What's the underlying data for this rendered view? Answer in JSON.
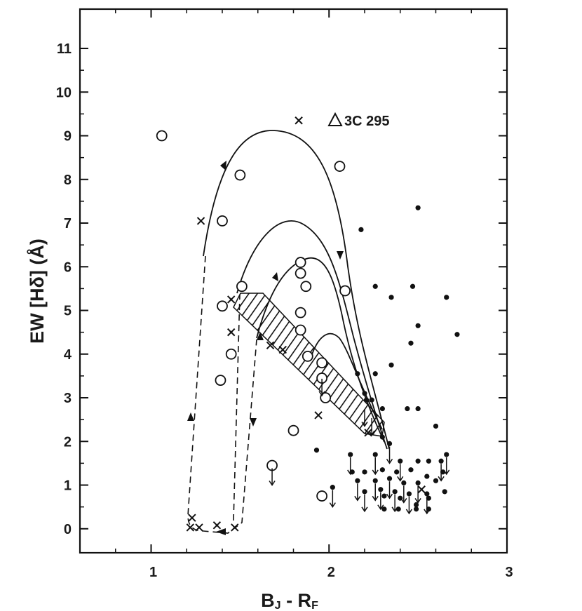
{
  "chart_data": {
    "type": "scatter",
    "title": "",
    "xlabel": "B_J - R_F",
    "ylabel": "EW [Hδ] (Å)",
    "xlim": [
      0.6,
      3.0
    ],
    "ylim": [
      -0.55,
      11.9
    ],
    "xticks": [
      1,
      2,
      3
    ],
    "yticks": [
      0,
      1,
      2,
      3,
      4,
      5,
      6,
      7,
      8,
      9,
      10,
      11
    ],
    "grid": false,
    "annotation": {
      "label": "3C 295",
      "symbol": "triangle"
    },
    "series": [
      {
        "marker": "open-circle",
        "points": [
          [
            1.06,
            9.0
          ],
          [
            1.5,
            8.1
          ],
          [
            2.06,
            8.3
          ],
          [
            1.4,
            7.05
          ],
          [
            1.84,
            6.1
          ],
          [
            1.84,
            5.85
          ],
          [
            1.87,
            5.55
          ],
          [
            1.51,
            5.55
          ],
          [
            2.09,
            5.45
          ],
          [
            1.4,
            5.1
          ],
          [
            1.84,
            4.95
          ],
          [
            1.84,
            4.55
          ],
          [
            1.45,
            4.0
          ],
          [
            1.88,
            3.95
          ],
          [
            1.96,
            3.8
          ],
          [
            1.96,
            3.45
          ],
          [
            1.39,
            3.4
          ],
          [
            1.98,
            3.0
          ],
          [
            1.8,
            2.25
          ],
          [
            1.68,
            1.45
          ],
          [
            1.96,
            0.75
          ]
        ]
      },
      {
        "marker": "cross",
        "points": [
          [
            1.83,
            9.35
          ],
          [
            1.28,
            7.05
          ],
          [
            1.45,
            5.25
          ],
          [
            1.45,
            4.5
          ],
          [
            1.67,
            4.2
          ],
          [
            1.74,
            4.1
          ],
          [
            1.94,
            2.6
          ],
          [
            2.22,
            2.2
          ],
          [
            2.52,
            0.9
          ],
          [
            1.23,
            0.25
          ],
          [
            1.22,
            0.03
          ],
          [
            1.27,
            0.03
          ],
          [
            1.37,
            0.08
          ],
          [
            1.47,
            0.03
          ]
        ]
      },
      {
        "marker": "filled-circle",
        "points": [
          [
            2.5,
            7.35
          ],
          [
            2.18,
            6.85
          ],
          [
            2.26,
            5.55
          ],
          [
            2.47,
            5.55
          ],
          [
            2.35,
            5.3
          ],
          [
            2.66,
            5.3
          ],
          [
            2.5,
            4.65
          ],
          [
            2.72,
            4.45
          ],
          [
            2.46,
            4.25
          ],
          [
            2.35,
            3.75
          ],
          [
            2.16,
            3.55
          ],
          [
            2.26,
            3.55
          ],
          [
            2.2,
            3.1
          ],
          [
            2.21,
            2.95
          ],
          [
            2.24,
            2.95
          ],
          [
            2.3,
            2.75
          ],
          [
            2.44,
            2.75
          ],
          [
            2.5,
            2.75
          ],
          [
            2.6,
            2.35
          ],
          [
            2.3,
            2.1
          ],
          [
            2.34,
            1.95
          ],
          [
            1.93,
            1.8
          ],
          [
            2.12,
            1.7
          ],
          [
            2.26,
            1.7
          ],
          [
            2.4,
            1.55
          ],
          [
            2.5,
            1.55
          ],
          [
            2.56,
            1.55
          ],
          [
            2.63,
            1.55
          ],
          [
            2.66,
            1.7
          ],
          [
            2.13,
            1.3
          ],
          [
            2.2,
            1.3
          ],
          [
            2.3,
            1.35
          ],
          [
            2.38,
            1.3
          ],
          [
            2.46,
            1.35
          ],
          [
            2.55,
            1.2
          ],
          [
            2.64,
            1.3
          ],
          [
            2.16,
            1.1
          ],
          [
            2.26,
            1.1
          ],
          [
            2.34,
            1.15
          ],
          [
            2.42,
            1.05
          ],
          [
            2.5,
            1.05
          ],
          [
            2.6,
            1.1
          ],
          [
            2.2,
            0.85
          ],
          [
            2.29,
            0.9
          ],
          [
            2.37,
            0.85
          ],
          [
            2.45,
            0.8
          ],
          [
            2.55,
            0.8
          ],
          [
            2.02,
            0.95
          ],
          [
            2.31,
            0.75
          ],
          [
            2.4,
            0.7
          ],
          [
            2.49,
            0.55
          ],
          [
            2.56,
            0.7
          ],
          [
            2.65,
            0.85
          ],
          [
            2.31,
            0.45
          ],
          [
            2.39,
            0.45
          ],
          [
            2.49,
            0.45
          ],
          [
            2.56,
            0.45
          ]
        ]
      },
      {
        "marker": "upper-limit",
        "points": [
          [
            1.68,
            1.45
          ],
          [
            1.96,
            3.5
          ],
          [
            2.02,
            0.95
          ],
          [
            2.12,
            1.7
          ],
          [
            2.16,
            1.1
          ],
          [
            2.2,
            0.85
          ],
          [
            2.26,
            1.7
          ],
          [
            2.26,
            1.1
          ],
          [
            2.29,
            0.9
          ],
          [
            2.34,
            1.95
          ],
          [
            2.34,
            1.15
          ],
          [
            2.37,
            0.85
          ],
          [
            2.4,
            1.55
          ],
          [
            2.42,
            1.05
          ],
          [
            2.45,
            0.8
          ],
          [
            2.5,
            1.05
          ],
          [
            2.55,
            0.8
          ],
          [
            2.63,
            1.55
          ],
          [
            2.66,
            1.7
          ],
          [
            2.2,
            2.8
          ],
          [
            2.24,
            2.6
          ]
        ]
      }
    ]
  }
}
